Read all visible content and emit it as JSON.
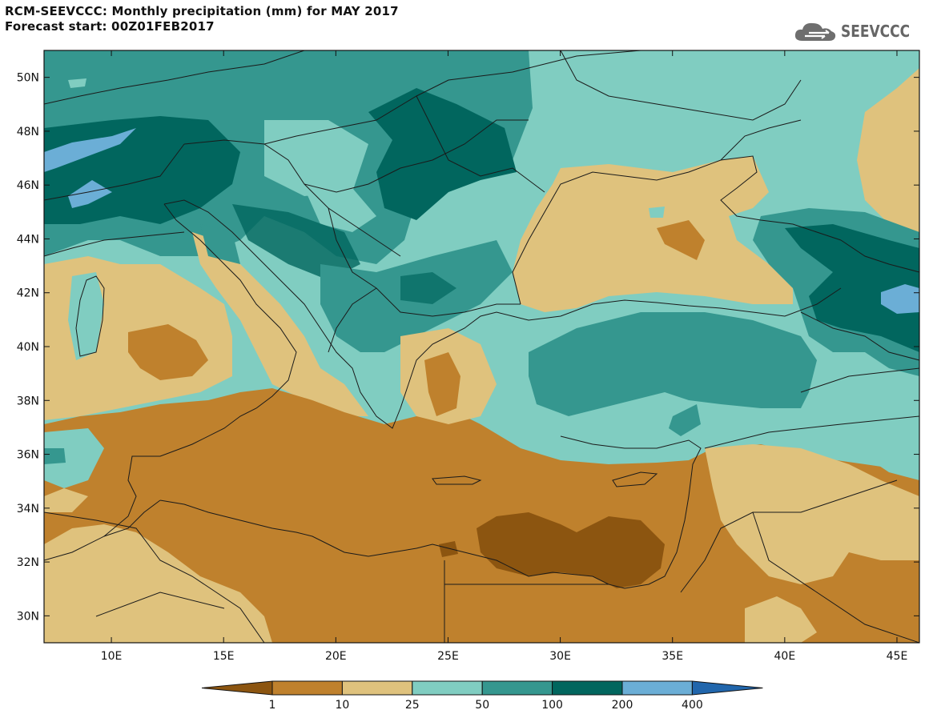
{
  "header": {
    "title_line1": "RCM-SEEVCCC: Monthly precipitation (mm) for MAY 2017",
    "title_line2": "Forecast start: 00Z01FEB2017"
  },
  "logo": {
    "text": "SEEVCCC",
    "icon": "cloud-logo-icon",
    "color": "#6e6e6e"
  },
  "map": {
    "lat_labels": [
      "50N",
      "48N",
      "46N",
      "44N",
      "42N",
      "40N",
      "38N",
      "36N",
      "34N",
      "32N",
      "30N"
    ],
    "lon_labels": [
      "10E",
      "15E",
      "20E",
      "25E",
      "30E",
      "35E",
      "40E",
      "45E"
    ],
    "lon_range": [
      7,
      46
    ],
    "lat_range": [
      29,
      51
    ]
  },
  "colorbar": {
    "labels": [
      "1",
      "10",
      "25",
      "50",
      "100",
      "200",
      "400"
    ],
    "colors": [
      "#8c5510",
      "#bf812d",
      "#dfc27d",
      "#80cdc1",
      "#35978f",
      "#01665e",
      "#6baed6",
      "#2166ac"
    ]
  }
}
